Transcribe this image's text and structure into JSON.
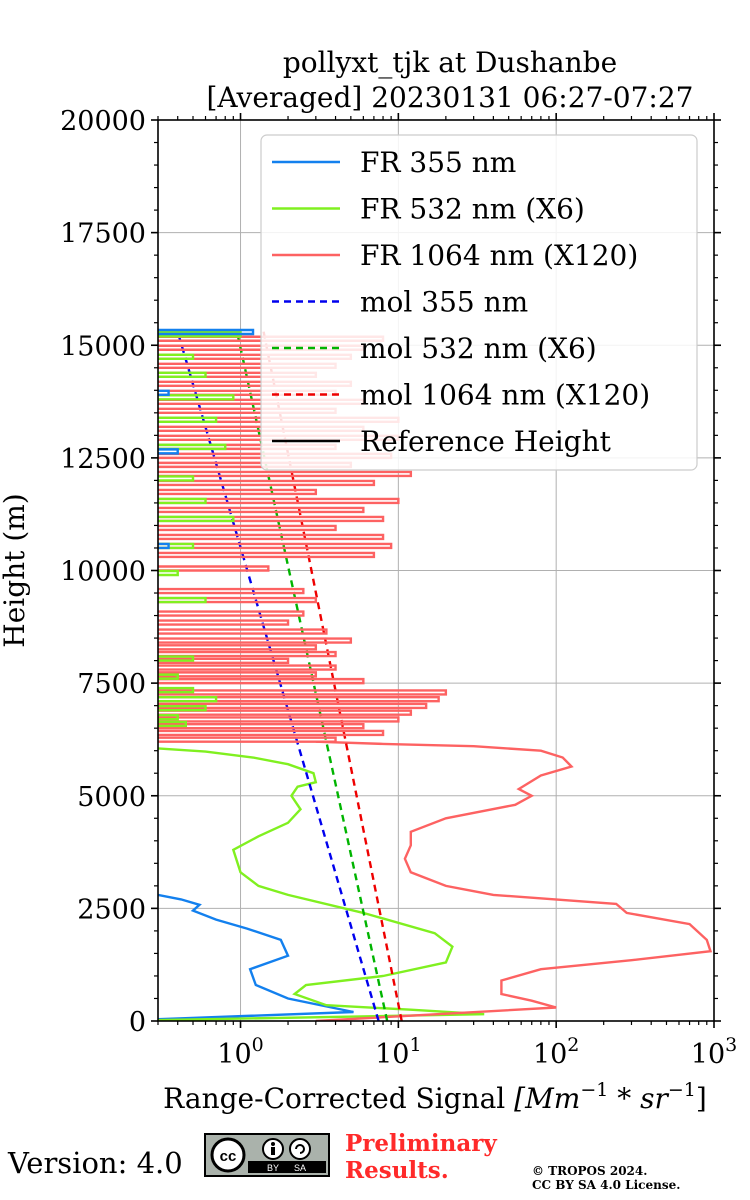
{
  "chart_data": {
    "type": "line",
    "title": [
      "pollyxt_tjk at Dushanbe",
      "[Averaged] 20230131 06:27-07:27"
    ],
    "xlabel": "Range-Corrected Signal",
    "xlabel_units": "[Mm",
    "xlabel_units_mid": " * sr",
    "xlabel_units_end": "]",
    "xlabel_exp": "−1",
    "ylabel": "Height (m)",
    "xscale": "log",
    "xlim": [
      0.3,
      1000
    ],
    "ylim": [
      0,
      20000
    ],
    "grid": true,
    "legend_position": "top-right",
    "xtick_labels": [
      {
        "base": "10",
        "exp": "0",
        "value": 1
      },
      {
        "base": "10",
        "exp": "1",
        "value": 10
      },
      {
        "base": "10",
        "exp": "2",
        "value": 100
      },
      {
        "base": "10",
        "exp": "3",
        "value": 1000
      }
    ],
    "ytick_labels": [
      "0",
      "2500",
      "5000",
      "7500",
      "10000",
      "12500",
      "15000",
      "17500",
      "20000"
    ],
    "ytick_values": [
      0,
      2500,
      5000,
      7500,
      10000,
      12500,
      15000,
      17500,
      20000
    ],
    "series": [
      {
        "name": "FR 355 nm",
        "color": "#1380ee",
        "style": "solid",
        "x": [
          0.3,
          5.2,
          2.0,
          1.25,
          1.15,
          2.0,
          1.8,
          1.1,
          0.7,
          0.5,
          0.55,
          0.42,
          0.3
        ],
        "y": [
          40,
          200,
          500,
          800,
          1150,
          1450,
          1800,
          2050,
          2250,
          2450,
          2580,
          2700,
          2800
        ]
      },
      {
        "name": "FR 532 nm (X6)",
        "color": "#80f020",
        "style": "solid",
        "x": [
          0.3,
          35,
          12,
          3.5,
          2.2,
          2.6,
          8,
          20,
          22,
          17,
          6,
          2,
          1.3,
          1.0,
          0.9,
          1.3,
          2.0,
          2.4,
          2.1,
          2.3,
          3.0,
          2.9,
          2.0,
          1.2,
          0.6,
          0.3
        ],
        "y": [
          20,
          150,
          250,
          350,
          600,
          800,
          1000,
          1300,
          1650,
          1950,
          2400,
          2800,
          3000,
          3300,
          3800,
          4100,
          4400,
          4700,
          5000,
          5200,
          5300,
          5500,
          5700,
          5850,
          5980,
          6050
        ]
      },
      {
        "name": "FR 1064 nm (X120)",
        "color": "#fd6262",
        "style": "solid",
        "x": [
          3,
          100,
          70,
          45,
          45,
          80,
          300,
          950,
          900,
          700,
          280,
          240,
          40,
          20,
          12,
          11,
          12,
          12,
          20,
          55,
          70,
          58,
          80,
          125,
          110,
          80,
          30,
          8,
          3
        ],
        "y": [
          0,
          300,
          450,
          600,
          900,
          1150,
          1350,
          1550,
          1800,
          2150,
          2400,
          2600,
          2800,
          3000,
          3300,
          3600,
          3900,
          4200,
          4500,
          4800,
          5000,
          5150,
          5450,
          5650,
          5850,
          6000,
          6100,
          6150,
          6200
        ]
      },
      {
        "name": "mol 355 nm",
        "color": "#0000ee",
        "style": "dashed",
        "x": [
          7.5,
          0.4
        ],
        "y": [
          0,
          15300
        ]
      },
      {
        "name": "mol 532 nm (X6)",
        "color": "#00b400",
        "style": "dashed",
        "x": [
          8.5,
          0.95
        ],
        "y": [
          0,
          15300
        ]
      },
      {
        "name": "mol 1064 nm (X120)",
        "color": "#ee0000",
        "style": "dashed",
        "x": [
          10.5,
          1.4
        ],
        "y": [
          0,
          15300
        ]
      },
      {
        "name": "Reference Height",
        "color": "#000000",
        "style": "solid",
        "x": [],
        "y": []
      }
    ],
    "noise": {
      "red_spikes": [
        {
          "y": 6200,
          "x": 4
        },
        {
          "y": 6350,
          "x": 8
        },
        {
          "y": 6500,
          "x": 6
        },
        {
          "y": 6650,
          "x": 10
        },
        {
          "y": 6800,
          "x": 12
        },
        {
          "y": 6950,
          "x": 15
        },
        {
          "y": 7100,
          "x": 18
        },
        {
          "y": 7250,
          "x": 20
        },
        {
          "y": 7500,
          "x": 6
        },
        {
          "y": 7650,
          "x": 3
        },
        {
          "y": 7800,
          "x": 4
        },
        {
          "y": 7950,
          "x": 2
        },
        {
          "y": 8100,
          "x": 4
        },
        {
          "y": 8250,
          "x": 3
        },
        {
          "y": 8400,
          "x": 5
        },
        {
          "y": 8600,
          "x": 3.5
        },
        {
          "y": 8800,
          "x": 2
        },
        {
          "y": 9000,
          "x": 2.5
        },
        {
          "y": 9300,
          "x": 3
        },
        {
          "y": 9500,
          "x": 2.5
        },
        {
          "y": 10000,
          "x": 1.5
        },
        {
          "y": 10300,
          "x": 7
        },
        {
          "y": 10500,
          "x": 9
        },
        {
          "y": 10700,
          "x": 8
        },
        {
          "y": 10900,
          "x": 4
        },
        {
          "y": 11100,
          "x": 8
        },
        {
          "y": 11300,
          "x": 6
        },
        {
          "y": 11500,
          "x": 10
        },
        {
          "y": 11700,
          "x": 3
        },
        {
          "y": 11900,
          "x": 7
        },
        {
          "y": 12100,
          "x": 12
        },
        {
          "y": 12300,
          "x": 5
        },
        {
          "y": 12500,
          "x": 9
        },
        {
          "y": 12700,
          "x": 4
        },
        {
          "y": 12900,
          "x": 10
        },
        {
          "y": 13100,
          "x": 6
        },
        {
          "y": 13300,
          "x": 10
        },
        {
          "y": 13500,
          "x": 4
        },
        {
          "y": 13700,
          "x": 6
        },
        {
          "y": 13900,
          "x": 4
        },
        {
          "y": 14100,
          "x": 5
        },
        {
          "y": 14300,
          "x": 3
        },
        {
          "y": 14500,
          "x": 4
        },
        {
          "y": 14700,
          "x": 5
        },
        {
          "y": 14900,
          "x": 6
        },
        {
          "y": 15100,
          "x": 8
        }
      ],
      "green_spikes": [
        {
          "y": 6550,
          "x": 0.45
        },
        {
          "y": 6700,
          "x": 0.4
        },
        {
          "y": 6900,
          "x": 0.6
        },
        {
          "y": 7100,
          "x": 0.7
        },
        {
          "y": 7300,
          "x": 0.5
        },
        {
          "y": 7600,
          "x": 0.4
        },
        {
          "y": 8000,
          "x": 0.5
        },
        {
          "y": 9300,
          "x": 0.6
        },
        {
          "y": 9900,
          "x": 0.4
        },
        {
          "y": 10500,
          "x": 0.5
        },
        {
          "y": 11100,
          "x": 0.9
        },
        {
          "y": 11500,
          "x": 0.6
        },
        {
          "y": 12000,
          "x": 0.5
        },
        {
          "y": 12700,
          "x": 0.8
        },
        {
          "y": 13300,
          "x": 0.7
        },
        {
          "y": 13800,
          "x": 0.9
        },
        {
          "y": 14300,
          "x": 0.6
        },
        {
          "y": 14700,
          "x": 0.5
        },
        {
          "y": 15200,
          "x": 1.0
        }
      ],
      "blue_spikes": [
        {
          "y": 10500,
          "x": 0.35
        },
        {
          "y": 12600,
          "x": 0.4
        },
        {
          "y": 13900,
          "x": 0.35
        },
        {
          "y": 15250,
          "x": 1.2
        }
      ]
    }
  },
  "footer": {
    "version": "Version: 4.0",
    "cc_label": "cc",
    "cc_by": "BY",
    "cc_sa": "SA",
    "preliminary_line1": "Preliminary",
    "preliminary_line2": "Results.",
    "copyright_line1": "© TROPOS 2024.",
    "copyright_line2": "CC BY SA 4.0 License."
  }
}
